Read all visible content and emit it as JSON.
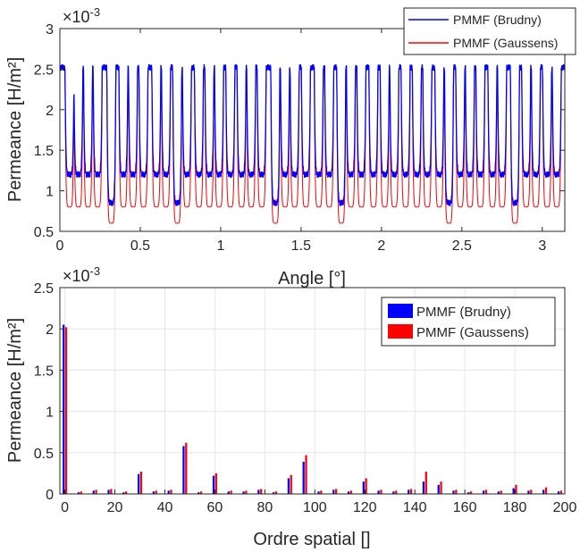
{
  "chart_data": [
    {
      "type": "line",
      "xlabel": "Angle [°]",
      "ylabel": "Permeance [H/m²]",
      "exponent_label": "×10",
      "exponent_power": "-3",
      "xlim": [
        0,
        3.14
      ],
      "ylim": [
        0.5,
        3
      ],
      "x_ticks": [
        "0",
        "0.5",
        "1",
        "1.5",
        "2",
        "2.5",
        "3"
      ],
      "y_ticks": [
        "0.5",
        "1",
        "1.5",
        "2",
        "2.5",
        "3"
      ],
      "x_tick_values": [
        0,
        0.5,
        1,
        1.5,
        2,
        2.5,
        3
      ],
      "y_tick_values": [
        0.5,
        1,
        1.5,
        2,
        2.5,
        3
      ],
      "grid": false,
      "legend_position": "top-right",
      "series": [
        {
          "name": "PMMF (Brudny)",
          "color": "#0000ff",
          "description_values": {
            "plateau": 2.52,
            "slot_low": 1.2,
            "deep_low": 0.85
          }
        },
        {
          "name": "PMMF (Gaussens)",
          "color": "#ff0000",
          "description_values": {
            "plateau": 2.5,
            "slot_low": 0.8,
            "deep_low": 0.6
          }
        }
      ],
      "slot_angles": [
        0.06,
        0.115,
        0.175,
        0.235,
        0.32,
        0.395,
        0.455,
        0.52,
        0.6,
        0.66,
        0.73,
        0.79,
        0.865,
        0.93,
        0.99,
        1.06,
        1.13,
        1.19,
        1.255,
        1.34,
        1.4,
        1.46,
        1.53,
        1.61,
        1.675,
        1.75,
        1.81,
        1.875,
        1.95,
        2.02,
        2.08,
        2.15,
        2.22,
        2.285,
        2.36,
        2.42,
        2.49,
        2.55,
        2.615,
        2.69,
        2.75,
        2.83,
        2.9,
        2.96,
        3.03,
        3.09
      ],
      "deep_slot_angles": [
        0.32,
        0.73,
        1.34,
        1.75,
        2.42,
        2.83
      ]
    },
    {
      "type": "bar",
      "xlabel": "Ordre spatial []",
      "ylabel": "Permeance [H/m²]",
      "exponent_label": "×10",
      "exponent_power": "-3",
      "xlim": [
        -2,
        200
      ],
      "ylim": [
        0,
        2.5
      ],
      "x_ticks": [
        "0",
        "20",
        "40",
        "60",
        "80",
        "100",
        "120",
        "140",
        "160",
        "180",
        "200"
      ],
      "y_ticks": [
        "0",
        "0.5",
        "1",
        "1.5",
        "2",
        "2.5"
      ],
      "x_tick_values": [
        0,
        20,
        40,
        60,
        80,
        100,
        120,
        140,
        160,
        180,
        200
      ],
      "y_tick_values": [
        0,
        0.5,
        1,
        1.5,
        2,
        2.5
      ],
      "grid": true,
      "legend_position": "top-right",
      "categories": [
        0,
        6,
        12,
        18,
        24,
        30,
        36,
        42,
        48,
        54,
        60,
        66,
        72,
        78,
        84,
        90,
        96,
        102,
        108,
        114,
        120,
        126,
        132,
        138,
        144,
        150,
        156,
        162,
        168,
        174,
        180,
        186,
        192,
        198
      ],
      "series": [
        {
          "name": "PMMF (Brudny)",
          "color": "#0000ff",
          "values": [
            2.05,
            0.02,
            0.04,
            0.05,
            0.02,
            0.24,
            0.03,
            0.04,
            0.58,
            0.02,
            0.22,
            0.03,
            0.03,
            0.05,
            0.02,
            0.19,
            0.39,
            0.03,
            0.05,
            0.03,
            0.15,
            0.04,
            0.03,
            0.05,
            0.15,
            0.11,
            0.04,
            0.02,
            0.04,
            0.03,
            0.07,
            0.04,
            0.05,
            0.03
          ]
        },
        {
          "name": "PMMF (Gaussens)",
          "color": "#ff0000",
          "values": [
            2.02,
            0.03,
            0.05,
            0.06,
            0.03,
            0.27,
            0.04,
            0.05,
            0.62,
            0.03,
            0.25,
            0.04,
            0.04,
            0.06,
            0.03,
            0.23,
            0.47,
            0.04,
            0.06,
            0.04,
            0.19,
            0.05,
            0.04,
            0.06,
            0.27,
            0.15,
            0.05,
            0.03,
            0.05,
            0.04,
            0.11,
            0.05,
            0.08,
            0.04
          ]
        }
      ]
    }
  ]
}
